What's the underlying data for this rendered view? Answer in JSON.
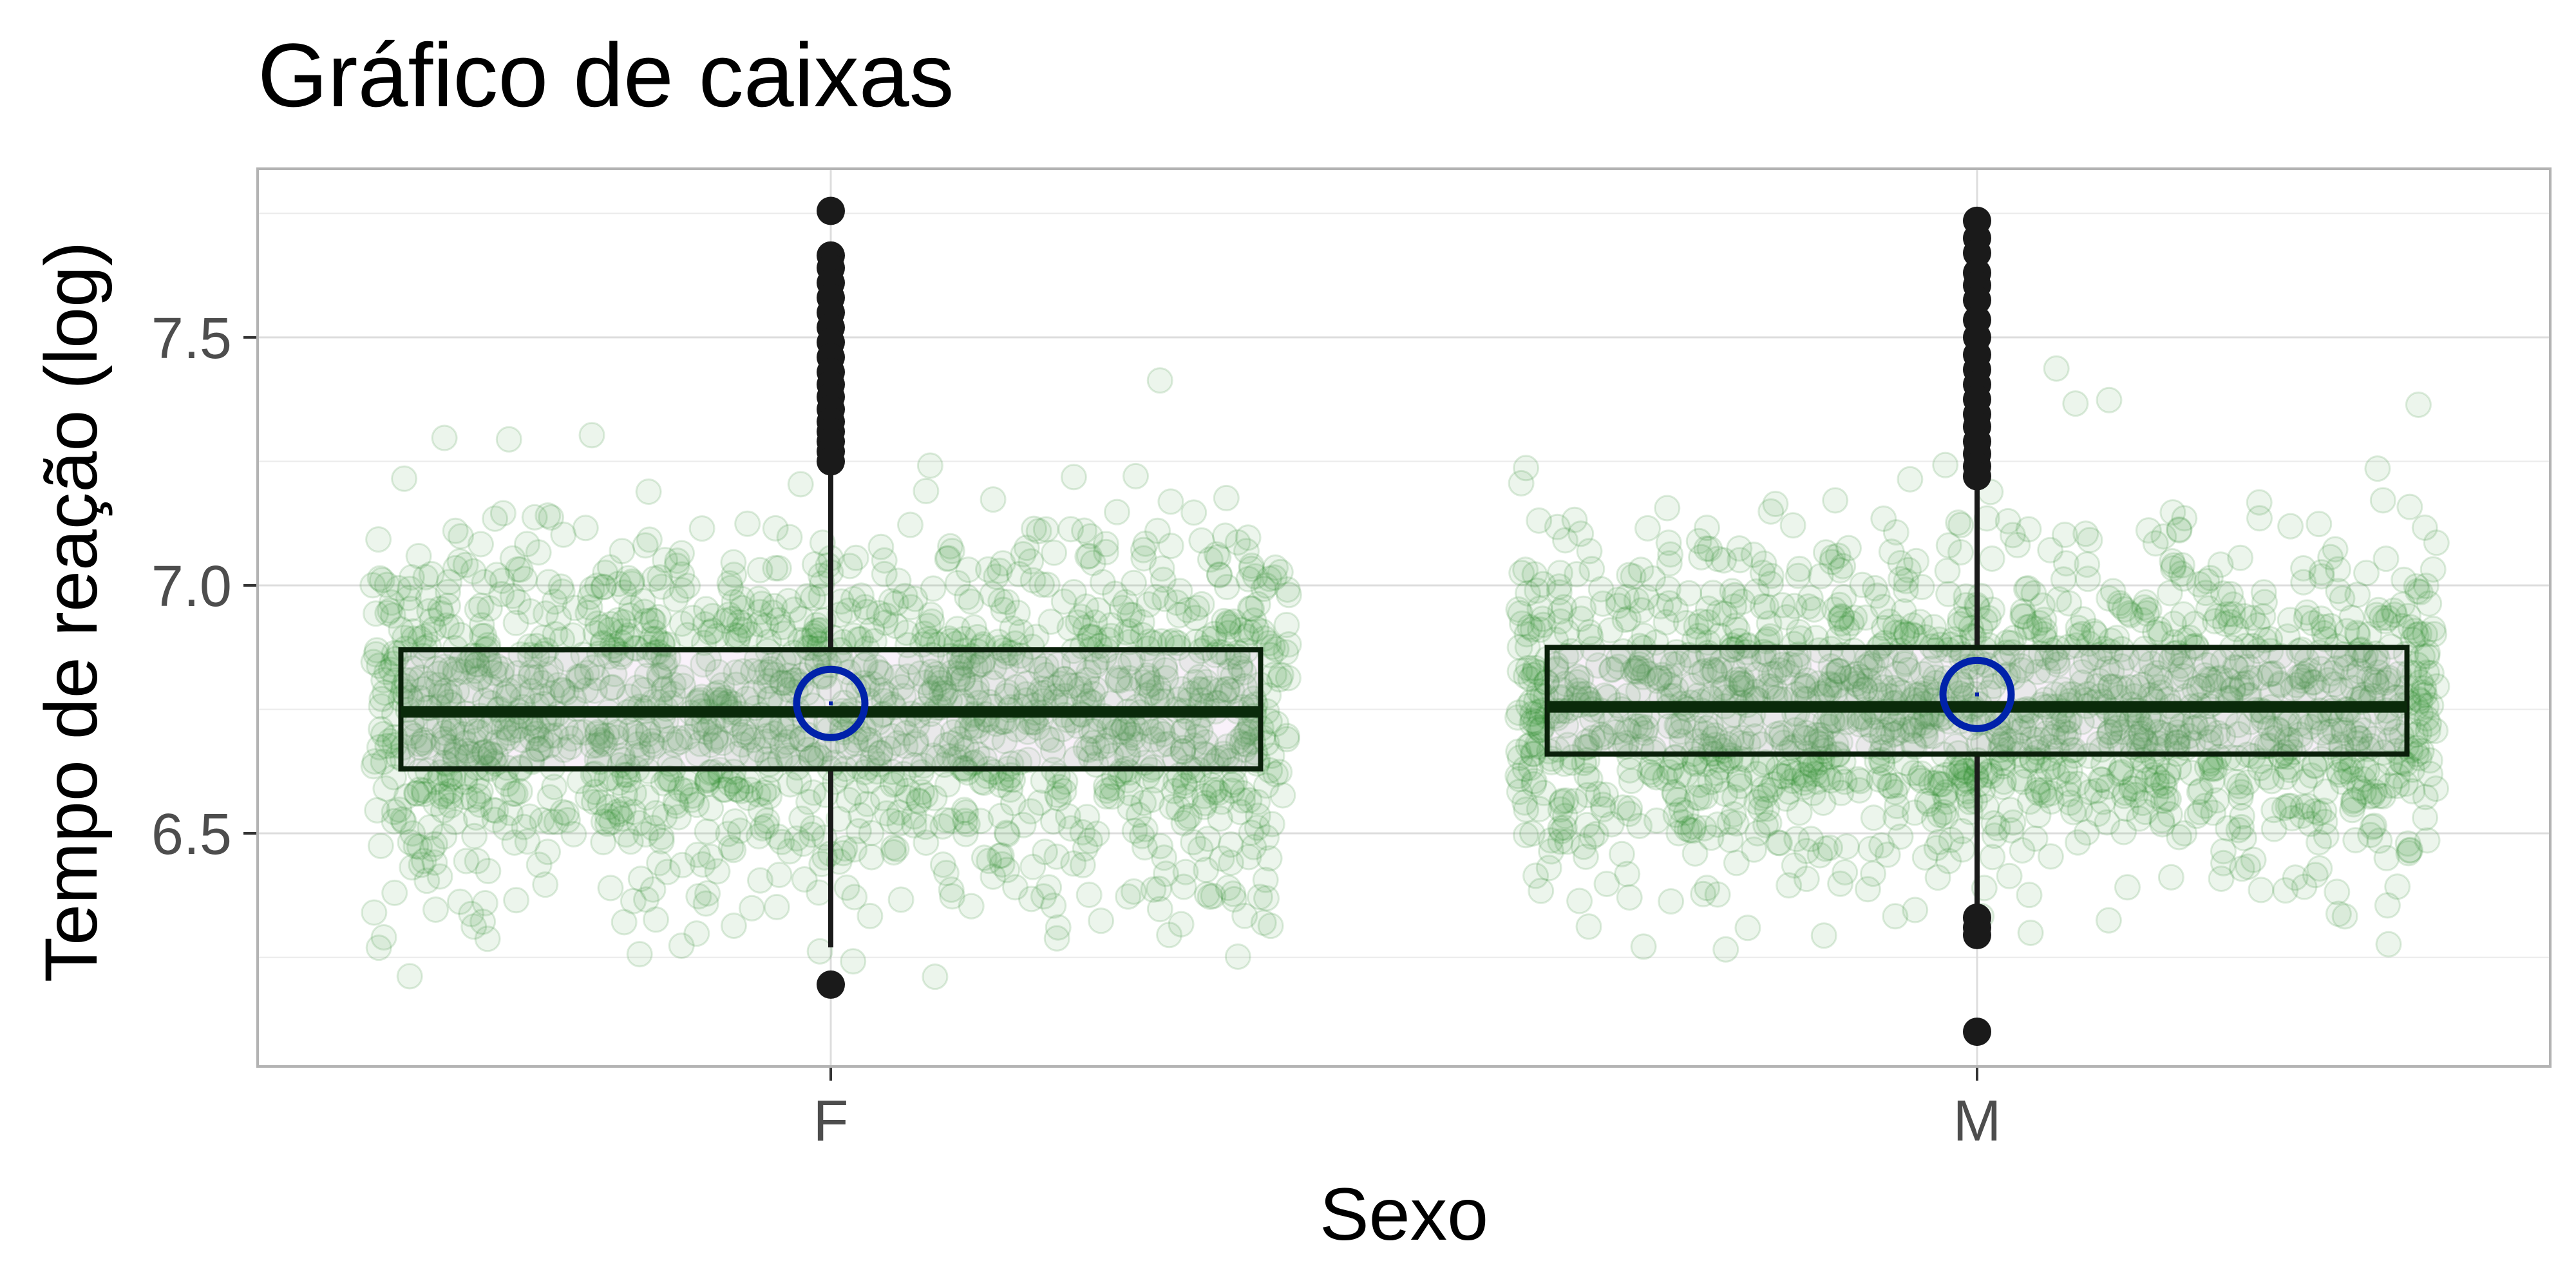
{
  "chart_data": {
    "type": "boxplot",
    "title": "Gráfico de caixas",
    "xlabel": "Sexo",
    "ylabel": "Tempo de reação (log)",
    "categories": [
      "F",
      "M"
    ],
    "ylim": [
      6.03,
      7.84
    ],
    "yticks": [
      6.5,
      7.0,
      7.5
    ],
    "ytick_labels": [
      "6.5",
      "7.0",
      "7.5"
    ],
    "grid": true,
    "legend": "none",
    "boxes": [
      {
        "category": "F",
        "q1": 6.63,
        "median": 6.745,
        "q3": 6.87,
        "whisker_low": 6.27,
        "whisker_high": 7.24,
        "mean": 6.762,
        "outliers": [
          7.755,
          7.665,
          7.64,
          7.61,
          7.58,
          7.55,
          7.52,
          7.49,
          7.46,
          7.43,
          7.405,
          7.38,
          7.355,
          7.33,
          7.31,
          7.29,
          7.27,
          7.25,
          6.195
        ]
      },
      {
        "category": "M",
        "q1": 6.66,
        "median": 6.755,
        "q3": 6.875,
        "whisker_low": 6.34,
        "whisker_high": 7.2,
        "mean": 6.78,
        "outliers": [
          7.735,
          7.7,
          7.67,
          7.63,
          7.605,
          7.575,
          7.535,
          7.5,
          7.465,
          7.435,
          7.405,
          7.375,
          7.345,
          7.32,
          7.29,
          7.265,
          7.24,
          7.22,
          6.33,
          6.31,
          6.295,
          6.1
        ]
      }
    ],
    "colors": {
      "points": "#2e8b2e",
      "box_outline": "#0a1f0a",
      "box_fill": "#d8a8e0",
      "median": "#0a2a0a",
      "mean_marker": "#0022aa",
      "outlier": "#1a1a1a",
      "grid": "#dddddd",
      "panel_border": "#b3b3b3"
    }
  }
}
